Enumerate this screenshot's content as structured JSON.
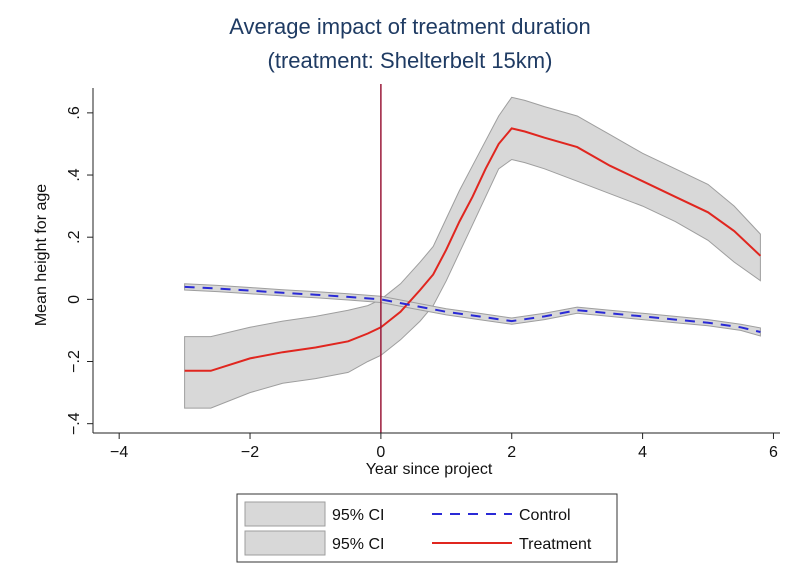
{
  "chart_data": {
    "type": "line",
    "title": "Average impact of treatment duration",
    "subtitle": "(treatment: Shelterbelt 15km)",
    "xlabel": "Year since project",
    "ylabel": "Mean height for age",
    "xlim": [
      -4.4,
      6.1
    ],
    "ylim": [
      -0.43,
      0.68
    ],
    "xticks": [
      -4,
      -2,
      0,
      2,
      4,
      6
    ],
    "xtick_labels": [
      "−4",
      "−2",
      "0",
      "2",
      "4",
      "6"
    ],
    "yticks": [
      -0.4,
      -0.2,
      0,
      0.2,
      0.4,
      0.6
    ],
    "ytick_labels": [
      "−.4",
      "−.2",
      "0",
      ".2",
      ".4",
      ".6"
    ],
    "vline_x": 0,
    "grid": false,
    "legend_position": "bottom",
    "colors": {
      "title": "#1f3b63",
      "control": "#2a2ad6",
      "treatment": "#e0261f",
      "ci_fill": "#d8d8d8",
      "ci_edge": "#9e9e9e",
      "vline": "#9a1a3a"
    },
    "series": [
      {
        "name": "Treatment",
        "style": "solid",
        "x": [
          -3,
          -2.6,
          -2,
          -1.5,
          -1,
          -0.5,
          -0.2,
          0,
          0.3,
          0.6,
          0.8,
          1.0,
          1.2,
          1.4,
          1.6,
          1.8,
          2.0,
          2.2,
          2.5,
          3.0,
          3.5,
          4.0,
          4.5,
          5.0,
          5.4,
          5.8
        ],
        "y": [
          -0.23,
          -0.23,
          -0.19,
          -0.17,
          -0.155,
          -0.135,
          -0.11,
          -0.09,
          -0.04,
          0.03,
          0.08,
          0.16,
          0.25,
          0.33,
          0.42,
          0.5,
          0.55,
          0.54,
          0.52,
          0.49,
          0.43,
          0.38,
          0.33,
          0.28,
          0.22,
          0.14
        ],
        "ci_lower": [
          -0.35,
          -0.35,
          -0.3,
          -0.27,
          -0.255,
          -0.235,
          -0.2,
          -0.18,
          -0.13,
          -0.07,
          -0.02,
          0.06,
          0.15,
          0.24,
          0.33,
          0.42,
          0.45,
          0.44,
          0.42,
          0.38,
          0.34,
          0.3,
          0.25,
          0.19,
          0.12,
          0.06
        ],
        "ci_upper": [
          -0.12,
          -0.12,
          -0.09,
          -0.07,
          -0.055,
          -0.035,
          -0.02,
          0.0,
          0.05,
          0.12,
          0.17,
          0.26,
          0.35,
          0.43,
          0.51,
          0.59,
          0.65,
          0.64,
          0.62,
          0.59,
          0.53,
          0.47,
          0.42,
          0.37,
          0.3,
          0.21
        ]
      },
      {
        "name": "Control",
        "style": "dashed",
        "x": [
          -3,
          -2.5,
          -2,
          -1.5,
          -1,
          -0.5,
          0,
          0.5,
          1.0,
          1.5,
          2.0,
          2.5,
          3.0,
          3.5,
          4.0,
          4.5,
          5.0,
          5.5,
          5.8
        ],
        "y": [
          0.04,
          0.035,
          0.028,
          0.021,
          0.015,
          0.008,
          0.0,
          -0.02,
          -0.04,
          -0.055,
          -0.07,
          -0.055,
          -0.035,
          -0.045,
          -0.055,
          -0.065,
          -0.075,
          -0.09,
          -0.105
        ],
        "ci_lower": [
          0.03,
          0.025,
          0.018,
          0.011,
          0.005,
          -0.002,
          -0.01,
          -0.03,
          -0.05,
          -0.065,
          -0.08,
          -0.065,
          -0.045,
          -0.055,
          -0.065,
          -0.075,
          -0.085,
          -0.1,
          -0.118
        ],
        "ci_upper": [
          0.05,
          0.045,
          0.038,
          0.031,
          0.025,
          0.018,
          0.01,
          -0.01,
          -0.03,
          -0.045,
          -0.06,
          -0.045,
          -0.025,
          -0.035,
          -0.045,
          -0.055,
          -0.065,
          -0.08,
          -0.092
        ]
      }
    ],
    "legend": [
      {
        "key": "ci",
        "label": "95% CI"
      },
      {
        "key": "control",
        "label": "Control"
      },
      {
        "key": "ci",
        "label": "95% CI"
      },
      {
        "key": "treatment",
        "label": "Treatment"
      }
    ]
  }
}
